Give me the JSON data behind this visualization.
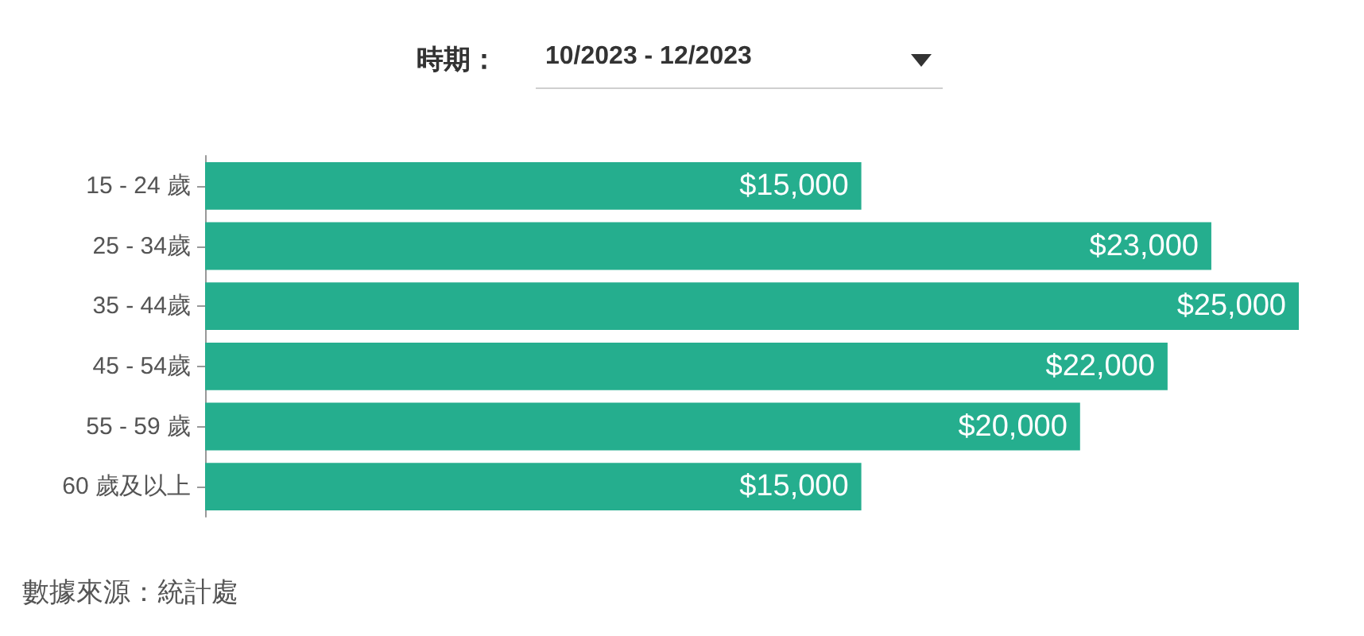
{
  "chart_data": {
    "type": "bar",
    "orientation": "horizontal",
    "categories": [
      "15 - 24 歲",
      "25 - 34歲",
      "35 - 44歲",
      "45 - 54歲",
      "55 - 59 歲",
      "60 歲及以上"
    ],
    "values": [
      15000,
      23000,
      25000,
      22000,
      20000,
      15000
    ],
    "color": "#25ae8e",
    "value_labels": [
      "$15,000",
      "$23,000",
      "$25,000",
      "$22,000",
      "$20,000",
      "$15,000"
    ],
    "annotations": [
      "時期：",
      "10/2023 - 12/2023",
      "數據來源：統計處"
    ]
  }
}
